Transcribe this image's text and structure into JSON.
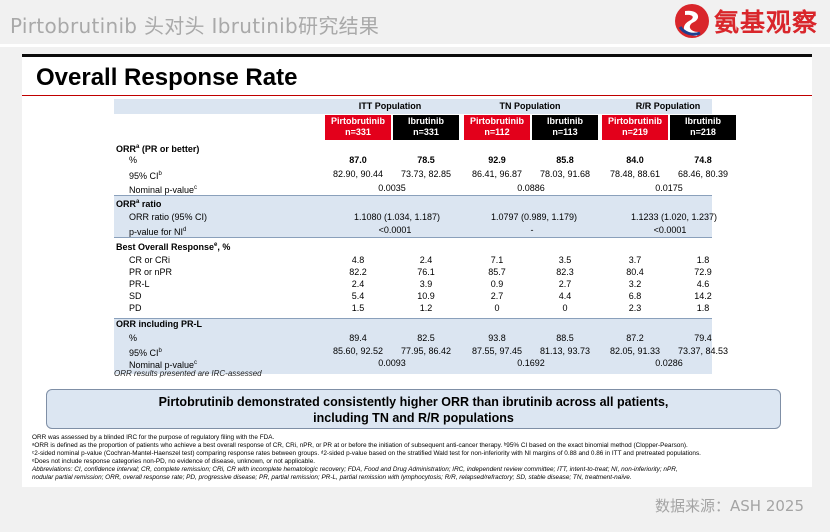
{
  "header": {
    "title": "Pirtobrutinib 头对头 Ibrutinib研究结果",
    "brand": "氨基观察",
    "source": "数据来源：ASH 2025"
  },
  "slide": {
    "title": "Overall Response Rate",
    "populations": [
      "ITT Population",
      "TN Population",
      "R/R Population"
    ],
    "arm_headers": [
      {
        "drug": "Pirtobrutinib",
        "n": "n=331"
      },
      {
        "drug": "Ibrutinib",
        "n": "n=331"
      },
      {
        "drug": "Pirtobrutinib",
        "n": "n=112"
      },
      {
        "drug": "Ibrutinib",
        "n": "n=113"
      },
      {
        "drug": "Pirtobrutinib",
        "n": "n=219"
      },
      {
        "drug": "Ibrutinib",
        "n": "n=218"
      }
    ],
    "orr": {
      "title": "ORR",
      "sup": "a",
      "title_suffix": " (PR or better)",
      "pct_label": "%",
      "pct": [
        "87.0",
        "78.5",
        "92.9",
        "85.8",
        "84.0",
        "74.8"
      ],
      "ci_label": "95% CI",
      "ci_sup": "b",
      "ci": [
        "82.90, 90.44",
        "73.73, 82.85",
        "86.41, 96.87",
        "78.03, 91.68",
        "78.48, 88.61",
        "68.46, 80.39"
      ],
      "pval_label": "Nominal p-value",
      "pval_sup": "c",
      "pval": [
        "0.0035",
        "0.0886",
        "0.0175"
      ]
    },
    "ratio": {
      "title": "ORR",
      "sup": "a",
      "title_suffix": " ratio",
      "ratio_label": "ORR ratio (95% CI)",
      "ratio": [
        "1.1080 (1.034, 1.187)",
        "1.0797 (0.989, 1.179)",
        "1.1233 (1.020, 1.237)"
      ],
      "pval_label": "p-value for NI",
      "pval_sup": "d",
      "pval": [
        "<0.0001",
        "-",
        "<0.0001"
      ]
    },
    "bor": {
      "title": "Best Overall Response",
      "sup": "e",
      "title_suffix": ", %",
      "rows": [
        {
          "label": "CR or CRi",
          "values": [
            "4.8",
            "2.4",
            "7.1",
            "3.5",
            "3.7",
            "1.8"
          ]
        },
        {
          "label": "PR or nPR",
          "values": [
            "82.2",
            "76.1",
            "85.7",
            "82.3",
            "80.4",
            "72.9"
          ]
        },
        {
          "label": "PR-L",
          "values": [
            "2.4",
            "3.9",
            "0.9",
            "2.7",
            "3.2",
            "4.6"
          ]
        },
        {
          "label": "SD",
          "values": [
            "5.4",
            "10.9",
            "2.7",
            "4.4",
            "6.8",
            "14.2"
          ]
        },
        {
          "label": "PD",
          "values": [
            "1.5",
            "1.2",
            "0",
            "0",
            "2.3",
            "1.8"
          ]
        }
      ]
    },
    "prl": {
      "title": "ORR including PR-L",
      "pct_label": "%",
      "pct": [
        "89.4",
        "82.5",
        "93.8",
        "88.5",
        "87.2",
        "79.4"
      ],
      "ci_label": "95% CI",
      "ci_sup": "b",
      "ci": [
        "85.60, 92.52",
        "77.95, 86.42",
        "87.55, 97.45",
        "81.13, 93.73",
        "82.05, 91.33",
        "73.37, 84.53"
      ],
      "pval_label": "Nominal p-value",
      "pval_sup": "c",
      "pval": [
        "0.0093",
        "0.1692",
        "0.0286"
      ]
    },
    "irc_note": "ORR results presented are IRC-assessed",
    "callout_line1": "Pirtobrutinib demonstrated consistently higher ORR than ibrutinib across all patients,",
    "callout_line2": "including TN and R/R populations",
    "footnotes": [
      "ORR was assessed by a blinded IRC for the purpose of regulatory filing with the FDA.",
      "ᵃORR is defined as the proportion of patients who achieve a best overall response of CR, CRi, nPR, or PR at or before the initiation of subsequent anti-cancer therapy. ᵇ95% CI based on the exact binomial method (Clopper-Pearson).",
      "ᶜ2-sided nominal p-value (Cochran-Mantel-Haenszel test) comparing response rates between groups. ᵈ2-sided p-value based on the stratified Wald test for non-inferiority with NI margins of 0.88 and 0.86 in ITT and pretreated populations.",
      "ᵉDoes not include response categories non-PD, no evidence of disease, unknown, or not applicable.",
      "Abbreviations: CI, confidence interval; CR, complete remission; CRi, CR with incomplete hematologic recovery; FDA, Food and Drug Administration; IRC, independent review committee; ITT, intent-to-treat; NI, non-inferiority; nPR,",
      "nodular partial remission; ORR, overall response rate; PD, progressive disease; PR, partial remission; PR-L, partial remission with lymphocytosis; R/R, relapsed/refractory; SD, stable disease; TN, treatment-naïve."
    ]
  },
  "colors": {
    "brand_red": "#d9262b",
    "pirtobrutinib_header": "#e3001b",
    "ibrutinib_header": "#000000",
    "band": "#dbe5f1",
    "callout_bg": "#dce6f2",
    "rule": "#c00000"
  }
}
